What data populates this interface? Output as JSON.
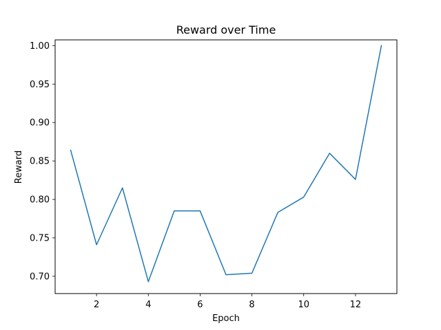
{
  "chart_data": {
    "type": "line",
    "title": "Reward over Time",
    "xlabel": "Epoch",
    "ylabel": "Reward",
    "x": [
      1,
      2,
      3,
      4,
      5,
      6,
      7,
      8,
      9,
      10,
      11,
      12,
      13
    ],
    "series": [
      {
        "values": [
          0.864,
          0.741,
          0.815,
          0.693,
          0.785,
          0.785,
          0.702,
          0.704,
          0.783,
          0.803,
          0.86,
          0.826,
          1.0
        ],
        "color": "#1f77b4"
      }
    ],
    "xlim": [
      0.4,
      13.6
    ],
    "ylim": [
      0.6775,
      1.0075
    ],
    "xticks": [
      2,
      4,
      6,
      8,
      10,
      12
    ],
    "xtick_labels": [
      "2",
      "4",
      "6",
      "8",
      "10",
      "12"
    ],
    "yticks": [
      0.7,
      0.75,
      0.8,
      0.85,
      0.9,
      0.95,
      1.0
    ],
    "ytick_labels": [
      "0.70",
      "0.75",
      "0.80",
      "0.85",
      "0.90",
      "0.95",
      "1.00"
    ],
    "grid": false,
    "legend": "none"
  }
}
